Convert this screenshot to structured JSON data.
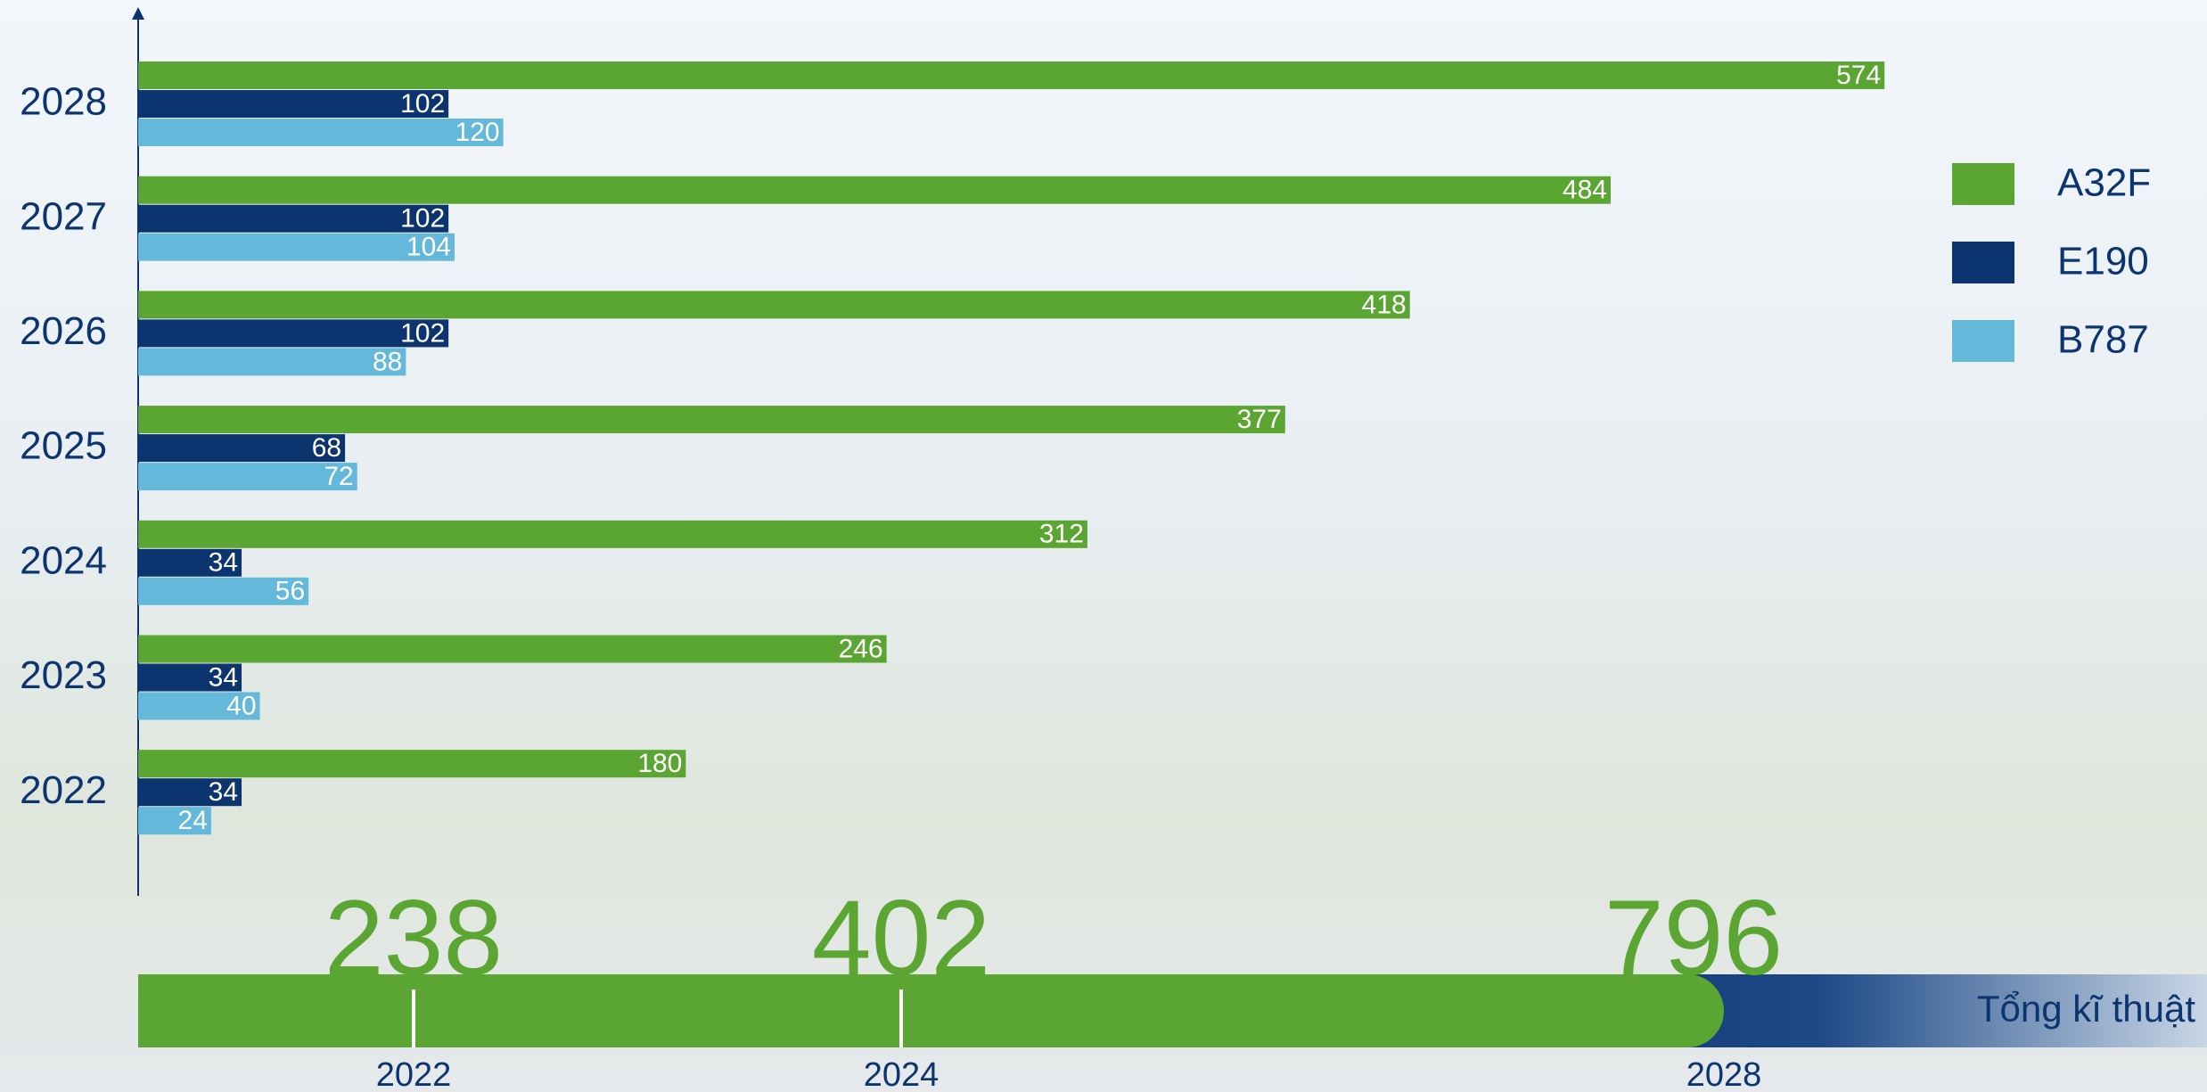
{
  "chart_data": {
    "type": "bar",
    "orientation": "horizontal",
    "categories": [
      "2028",
      "2027",
      "2026",
      "2025",
      "2024",
      "2023",
      "2022"
    ],
    "series": [
      {
        "name": "A32F",
        "color": "#5ba532",
        "values": [
          574,
          484,
          418,
          377,
          312,
          246,
          180
        ]
      },
      {
        "name": "E190",
        "color": "#0c3570",
        "values": [
          102,
          102,
          102,
          68,
          34,
          34,
          34
        ]
      },
      {
        "name": "B787",
        "color": "#64b8d9",
        "values": [
          120,
          104,
          88,
          72,
          56,
          40,
          24
        ]
      }
    ],
    "xlim": [
      0,
      680
    ],
    "legend": "right",
    "timeline": {
      "label": "Tổng kĩ thuật",
      "points": [
        {
          "year": "2022",
          "total": 238
        },
        {
          "year": "2024",
          "total": 402
        },
        {
          "year": "2028",
          "total": 796
        }
      ]
    }
  }
}
